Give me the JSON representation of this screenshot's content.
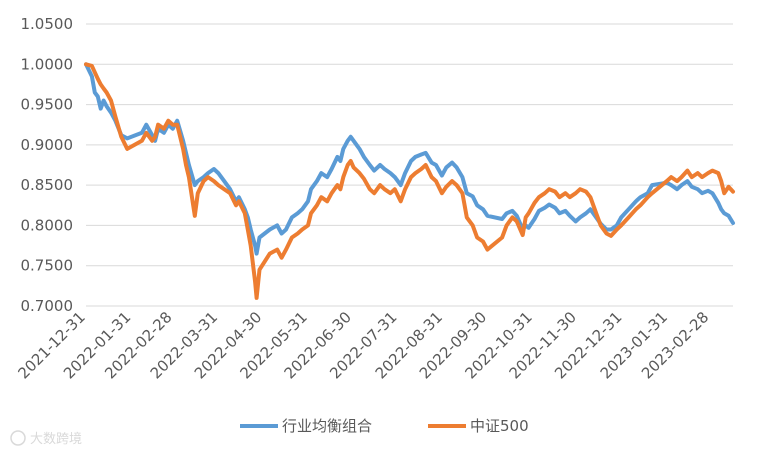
{
  "chart_data": {
    "type": "line",
    "title": "",
    "xlabel": "",
    "ylabel": "",
    "ylim": [
      0.7,
      1.05
    ],
    "y_ticks": [
      "0.7000",
      "0.7500",
      "0.8000",
      "0.8500",
      "0.9000",
      "0.9500",
      "1.0000",
      "1.0500"
    ],
    "categories": [
      "2021-12-31",
      "2022-01-31",
      "2022-02-28",
      "2022-03-31",
      "2022-04-30",
      "2022-05-31",
      "2022-06-30",
      "2022-07-31",
      "2022-08-31",
      "2022-09-30",
      "2022-10-31",
      "2022-11-30",
      "2022-12-31",
      "2023-01-31",
      "2023-02-28"
    ],
    "x_range": [
      "2021-12-31",
      "2023-03-16"
    ],
    "grid": "horizontal",
    "legend_position": "bottom",
    "series": [
      {
        "name": "行业均衡组合",
        "color": "#5B9BD5",
        "points": [
          [
            "2021-12-31",
            1.0
          ],
          [
            "2022-01-04",
            0.985
          ],
          [
            "2022-01-06",
            0.965
          ],
          [
            "2022-01-08",
            0.96
          ],
          [
            "2022-01-10",
            0.945
          ],
          [
            "2022-01-12",
            0.955
          ],
          [
            "2022-01-14",
            0.948
          ],
          [
            "2022-01-17",
            0.94
          ],
          [
            "2022-01-20",
            0.93
          ],
          [
            "2022-01-24",
            0.912
          ],
          [
            "2022-01-28",
            0.908
          ],
          [
            "2022-02-07",
            0.915
          ],
          [
            "2022-02-10",
            0.925
          ],
          [
            "2022-02-14",
            0.912
          ],
          [
            "2022-02-16",
            0.905
          ],
          [
            "2022-02-18",
            0.92
          ],
          [
            "2022-02-22",
            0.915
          ],
          [
            "2022-02-25",
            0.925
          ],
          [
            "2022-02-28",
            0.92
          ],
          [
            "2022-03-03",
            0.93
          ],
          [
            "2022-03-07",
            0.905
          ],
          [
            "2022-03-09",
            0.89
          ],
          [
            "2022-03-11",
            0.875
          ],
          [
            "2022-03-15",
            0.85
          ],
          [
            "2022-03-17",
            0.855
          ],
          [
            "2022-03-21",
            0.86
          ],
          [
            "2022-03-24",
            0.865
          ],
          [
            "2022-03-28",
            0.87
          ],
          [
            "2022-03-31",
            0.865
          ],
          [
            "2022-04-04",
            0.855
          ],
          [
            "2022-04-08",
            0.845
          ],
          [
            "2022-04-12",
            0.83
          ],
          [
            "2022-04-14",
            0.835
          ],
          [
            "2022-04-18",
            0.82
          ],
          [
            "2022-04-20",
            0.81
          ],
          [
            "2022-04-22",
            0.795
          ],
          [
            "2022-04-25",
            0.775
          ],
          [
            "2022-04-26",
            0.765
          ],
          [
            "2022-04-28",
            0.785
          ],
          [
            "2022-05-05",
            0.795
          ],
          [
            "2022-05-10",
            0.8
          ],
          [
            "2022-05-13",
            0.79
          ],
          [
            "2022-05-16",
            0.795
          ],
          [
            "2022-05-20",
            0.81
          ],
          [
            "2022-05-24",
            0.815
          ],
          [
            "2022-05-27",
            0.82
          ],
          [
            "2022-05-31",
            0.83
          ],
          [
            "2022-06-02",
            0.845
          ],
          [
            "2022-06-06",
            0.855
          ],
          [
            "2022-06-09",
            0.865
          ],
          [
            "2022-06-13",
            0.86
          ],
          [
            "2022-06-16",
            0.87
          ],
          [
            "2022-06-20",
            0.885
          ],
          [
            "2022-06-22",
            0.88
          ],
          [
            "2022-06-24",
            0.895
          ],
          [
            "2022-06-27",
            0.905
          ],
          [
            "2022-06-29",
            0.91
          ],
          [
            "2022-07-01",
            0.905
          ],
          [
            "2022-07-05",
            0.895
          ],
          [
            "2022-07-08",
            0.885
          ],
          [
            "2022-07-12",
            0.875
          ],
          [
            "2022-07-15",
            0.868
          ],
          [
            "2022-07-19",
            0.875
          ],
          [
            "2022-07-22",
            0.87
          ],
          [
            "2022-07-26",
            0.865
          ],
          [
            "2022-07-29",
            0.86
          ],
          [
            "2022-08-02",
            0.85
          ],
          [
            "2022-08-05",
            0.865
          ],
          [
            "2022-08-09",
            0.88
          ],
          [
            "2022-08-12",
            0.885
          ],
          [
            "2022-08-16",
            0.888
          ],
          [
            "2022-08-19",
            0.89
          ],
          [
            "2022-08-23",
            0.878
          ],
          [
            "2022-08-26",
            0.875
          ],
          [
            "2022-08-30",
            0.862
          ],
          [
            "2022-09-02",
            0.872
          ],
          [
            "2022-09-06",
            0.878
          ],
          [
            "2022-09-09",
            0.872
          ],
          [
            "2022-09-13",
            0.86
          ],
          [
            "2022-09-16",
            0.84
          ],
          [
            "2022-09-20",
            0.836
          ],
          [
            "2022-09-23",
            0.825
          ],
          [
            "2022-09-27",
            0.82
          ],
          [
            "2022-09-30",
            0.812
          ],
          [
            "2022-10-10",
            0.808
          ],
          [
            "2022-10-13",
            0.815
          ],
          [
            "2022-10-17",
            0.818
          ],
          [
            "2022-10-20",
            0.812
          ],
          [
            "2022-10-24",
            0.795
          ],
          [
            "2022-10-26",
            0.8
          ],
          [
            "2022-10-28",
            0.797
          ],
          [
            "2022-11-01",
            0.808
          ],
          [
            "2022-11-04",
            0.818
          ],
          [
            "2022-11-08",
            0.822
          ],
          [
            "2022-11-11",
            0.826
          ],
          [
            "2022-11-15",
            0.822
          ],
          [
            "2022-11-18",
            0.815
          ],
          [
            "2022-11-22",
            0.818
          ],
          [
            "2022-11-25",
            0.812
          ],
          [
            "2022-11-29",
            0.805
          ],
          [
            "2022-12-02",
            0.81
          ],
          [
            "2022-12-06",
            0.815
          ],
          [
            "2022-12-09",
            0.82
          ],
          [
            "2022-12-13",
            0.81
          ],
          [
            "2022-12-16",
            0.802
          ],
          [
            "2022-12-20",
            0.795
          ],
          [
            "2022-12-23",
            0.795
          ],
          [
            "2022-12-27",
            0.8
          ],
          [
            "2022-12-30",
            0.81
          ],
          [
            "2023-01-04",
            0.82
          ],
          [
            "2023-01-09",
            0.83
          ],
          [
            "2023-01-12",
            0.835
          ],
          [
            "2023-01-17",
            0.84
          ],
          [
            "2023-01-20",
            0.85
          ],
          [
            "2023-01-30",
            0.853
          ],
          [
            "2023-02-02",
            0.85
          ],
          [
            "2023-02-06",
            0.845
          ],
          [
            "2023-02-09",
            0.85
          ],
          [
            "2023-02-13",
            0.855
          ],
          [
            "2023-02-16",
            0.848
          ],
          [
            "2023-02-20",
            0.845
          ],
          [
            "2023-02-23",
            0.84
          ],
          [
            "2023-02-27",
            0.843
          ],
          [
            "2023-03-02",
            0.84
          ],
          [
            "2023-03-06",
            0.828
          ],
          [
            "2023-03-08",
            0.82
          ],
          [
            "2023-03-10",
            0.815
          ],
          [
            "2023-03-13",
            0.812
          ],
          [
            "2023-03-16",
            0.803
          ]
        ]
      },
      {
        "name": "中证500",
        "color": "#ED7D31",
        "points": [
          [
            "2021-12-31",
            1.0
          ],
          [
            "2022-01-04",
            0.998
          ],
          [
            "2022-01-06",
            0.99
          ],
          [
            "2022-01-08",
            0.982
          ],
          [
            "2022-01-10",
            0.975
          ],
          [
            "2022-01-12",
            0.97
          ],
          [
            "2022-01-14",
            0.965
          ],
          [
            "2022-01-17",
            0.955
          ],
          [
            "2022-01-20",
            0.935
          ],
          [
            "2022-01-24",
            0.91
          ],
          [
            "2022-01-28",
            0.895
          ],
          [
            "2022-02-07",
            0.905
          ],
          [
            "2022-02-10",
            0.915
          ],
          [
            "2022-02-14",
            0.905
          ],
          [
            "2022-02-16",
            0.91
          ],
          [
            "2022-02-18",
            0.925
          ],
          [
            "2022-02-22",
            0.92
          ],
          [
            "2022-02-25",
            0.93
          ],
          [
            "2022-02-28",
            0.925
          ],
          [
            "2022-03-03",
            0.925
          ],
          [
            "2022-03-07",
            0.895
          ],
          [
            "2022-03-09",
            0.875
          ],
          [
            "2022-03-11",
            0.86
          ],
          [
            "2022-03-15",
            0.812
          ],
          [
            "2022-03-17",
            0.84
          ],
          [
            "2022-03-21",
            0.855
          ],
          [
            "2022-03-24",
            0.86
          ],
          [
            "2022-03-28",
            0.855
          ],
          [
            "2022-03-31",
            0.85
          ],
          [
            "2022-04-04",
            0.845
          ],
          [
            "2022-04-08",
            0.84
          ],
          [
            "2022-04-12",
            0.825
          ],
          [
            "2022-04-14",
            0.83
          ],
          [
            "2022-04-18",
            0.815
          ],
          [
            "2022-04-20",
            0.795
          ],
          [
            "2022-04-22",
            0.775
          ],
          [
            "2022-04-25",
            0.73
          ],
          [
            "2022-04-26",
            0.71
          ],
          [
            "2022-04-28",
            0.745
          ],
          [
            "2022-05-05",
            0.765
          ],
          [
            "2022-05-10",
            0.77
          ],
          [
            "2022-05-13",
            0.76
          ],
          [
            "2022-05-16",
            0.77
          ],
          [
            "2022-05-20",
            0.785
          ],
          [
            "2022-05-24",
            0.79
          ],
          [
            "2022-05-27",
            0.795
          ],
          [
            "2022-05-31",
            0.8
          ],
          [
            "2022-06-02",
            0.815
          ],
          [
            "2022-06-06",
            0.825
          ],
          [
            "2022-06-09",
            0.835
          ],
          [
            "2022-06-13",
            0.83
          ],
          [
            "2022-06-16",
            0.84
          ],
          [
            "2022-06-20",
            0.85
          ],
          [
            "2022-06-22",
            0.845
          ],
          [
            "2022-06-24",
            0.86
          ],
          [
            "2022-06-27",
            0.875
          ],
          [
            "2022-06-29",
            0.88
          ],
          [
            "2022-07-01",
            0.872
          ],
          [
            "2022-07-05",
            0.865
          ],
          [
            "2022-07-08",
            0.858
          ],
          [
            "2022-07-12",
            0.845
          ],
          [
            "2022-07-15",
            0.84
          ],
          [
            "2022-07-19",
            0.85
          ],
          [
            "2022-07-22",
            0.845
          ],
          [
            "2022-07-26",
            0.84
          ],
          [
            "2022-07-29",
            0.845
          ],
          [
            "2022-08-02",
            0.83
          ],
          [
            "2022-08-05",
            0.845
          ],
          [
            "2022-08-09",
            0.86
          ],
          [
            "2022-08-12",
            0.865
          ],
          [
            "2022-08-16",
            0.87
          ],
          [
            "2022-08-19",
            0.875
          ],
          [
            "2022-08-23",
            0.86
          ],
          [
            "2022-08-26",
            0.855
          ],
          [
            "2022-08-30",
            0.84
          ],
          [
            "2022-09-02",
            0.848
          ],
          [
            "2022-09-06",
            0.855
          ],
          [
            "2022-09-09",
            0.85
          ],
          [
            "2022-09-13",
            0.84
          ],
          [
            "2022-09-16",
            0.81
          ],
          [
            "2022-09-20",
            0.8
          ],
          [
            "2022-09-23",
            0.785
          ],
          [
            "2022-09-27",
            0.78
          ],
          [
            "2022-09-30",
            0.77
          ],
          [
            "2022-10-10",
            0.785
          ],
          [
            "2022-10-13",
            0.8
          ],
          [
            "2022-10-17",
            0.81
          ],
          [
            "2022-10-20",
            0.805
          ],
          [
            "2022-10-24",
            0.788
          ],
          [
            "2022-10-26",
            0.81
          ],
          [
            "2022-10-28",
            0.815
          ],
          [
            "2022-11-01",
            0.828
          ],
          [
            "2022-11-04",
            0.835
          ],
          [
            "2022-11-08",
            0.84
          ],
          [
            "2022-11-11",
            0.845
          ],
          [
            "2022-11-15",
            0.842
          ],
          [
            "2022-11-18",
            0.835
          ],
          [
            "2022-11-22",
            0.84
          ],
          [
            "2022-11-25",
            0.835
          ],
          [
            "2022-11-29",
            0.84
          ],
          [
            "2022-12-02",
            0.845
          ],
          [
            "2022-12-06",
            0.842
          ],
          [
            "2022-12-09",
            0.835
          ],
          [
            "2022-12-13",
            0.815
          ],
          [
            "2022-12-16",
            0.8
          ],
          [
            "2022-12-20",
            0.79
          ],
          [
            "2022-12-23",
            0.787
          ],
          [
            "2022-12-27",
            0.795
          ],
          [
            "2022-12-30",
            0.8
          ],
          [
            "2023-01-04",
            0.81
          ],
          [
            "2023-01-09",
            0.82
          ],
          [
            "2023-01-12",
            0.825
          ],
          [
            "2023-01-17",
            0.835
          ],
          [
            "2023-01-20",
            0.84
          ],
          [
            "2023-01-30",
            0.855
          ],
          [
            "2023-02-02",
            0.86
          ],
          [
            "2023-02-06",
            0.855
          ],
          [
            "2023-02-09",
            0.86
          ],
          [
            "2023-02-13",
            0.868
          ],
          [
            "2023-02-16",
            0.86
          ],
          [
            "2023-02-20",
            0.865
          ],
          [
            "2023-02-23",
            0.86
          ],
          [
            "2023-02-27",
            0.865
          ],
          [
            "2023-03-02",
            0.868
          ],
          [
            "2023-03-06",
            0.865
          ],
          [
            "2023-03-08",
            0.855
          ],
          [
            "2023-03-10",
            0.84
          ],
          [
            "2023-03-13",
            0.848
          ],
          [
            "2023-03-16",
            0.842
          ]
        ]
      }
    ]
  },
  "watermark": {
    "text": "大数跨境"
  }
}
